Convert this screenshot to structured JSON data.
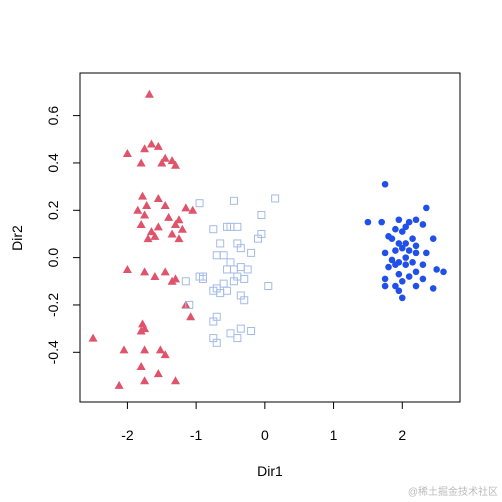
{
  "chart_data": {
    "type": "scatter",
    "xlabel": "Dir1",
    "ylabel": "Dir2",
    "xlim": [
      -2.69,
      2.84
    ],
    "ylim": [
      -0.61,
      0.78
    ],
    "xticks": [
      -2,
      -1,
      0,
      1,
      2
    ],
    "yticks": [
      -0.4,
      -0.2,
      {
        "value": 0,
        "label": "0.0"
      },
      0.2,
      0.4,
      0.6
    ],
    "watermark": "@稀土掘金技术社区",
    "series": [
      {
        "color": "#df536b",
        "marker": "triangle",
        "x": [
          -1.68,
          -2.0,
          -1.75,
          -1.65,
          -1.55,
          -1.45,
          -1.35,
          -1.5,
          -1.8,
          -1.3,
          -1.78,
          -1.55,
          -1.72,
          -1.85,
          -1.75,
          -1.45,
          -1.15,
          -1.05,
          -1.4,
          -1.25,
          -1.3,
          -1.8,
          -1.55,
          -1.65,
          -1.6,
          -1.2,
          -1.35,
          -1.7,
          -1.25,
          -2.0,
          -1.75,
          -1.6,
          -1.45,
          -1.35,
          -1.3,
          -1.15,
          -1.08,
          -1.78,
          -1.75,
          -1.8,
          -2.5,
          -2.05,
          -1.75,
          -1.52,
          -1.45,
          -1.8,
          -2.12,
          -1.75,
          -1.3,
          -1.55
        ],
        "values": [
          0.69,
          0.44,
          0.46,
          0.48,
          0.47,
          0.42,
          0.41,
          0.4,
          0.4,
          0.39,
          0.26,
          0.25,
          0.22,
          0.2,
          0.18,
          0.22,
          0.21,
          0.2,
          0.17,
          0.16,
          0.14,
          0.14,
          0.13,
          0.11,
          0.09,
          0.12,
          0.1,
          0.08,
          0.08,
          -0.05,
          -0.06,
          -0.08,
          -0.06,
          -0.1,
          -0.09,
          -0.2,
          -0.25,
          -0.28,
          -0.3,
          -0.31,
          -0.34,
          -0.39,
          -0.39,
          -0.39,
          -0.41,
          -0.46,
          -0.54,
          -0.52,
          -0.52,
          -0.49
        ]
      },
      {
        "color": "#a3bbe8",
        "marker": "square",
        "x": [
          0.15,
          -0.45,
          -0.95,
          -0.05,
          -0.55,
          -0.5,
          -0.75,
          -0.4,
          -0.05,
          -0.1,
          -0.65,
          -0.4,
          -0.35,
          -0.7,
          -0.6,
          -0.2,
          -0.5,
          -0.45,
          -0.35,
          -0.55,
          -0.25,
          -0.95,
          -0.9,
          -0.4,
          -1.15,
          -0.3,
          -0.45,
          -0.6,
          0.05,
          -0.7,
          -0.65,
          -0.55,
          -0.35,
          -0.3,
          -0.75,
          -1.1,
          -0.7,
          -0.75,
          -0.35,
          -0.2,
          -0.5,
          -0.75,
          -0.4,
          -0.7,
          -0.9
        ],
        "values": [
          0.25,
          0.24,
          0.23,
          0.18,
          0.13,
          0.13,
          0.12,
          0.13,
          0.1,
          0.08,
          0.06,
          0.06,
          0.04,
          0.01,
          0.01,
          0.02,
          -0.02,
          -0.05,
          -0.04,
          -0.05,
          -0.05,
          -0.08,
          -0.09,
          -0.08,
          -0.1,
          -0.09,
          -0.1,
          -0.11,
          -0.12,
          -0.13,
          -0.15,
          -0.14,
          -0.16,
          -0.18,
          -0.14,
          -0.2,
          -0.25,
          -0.27,
          -0.3,
          -0.31,
          -0.32,
          -0.34,
          -0.34,
          -0.36,
          -0.08
        ]
      },
      {
        "color": "#2150e8",
        "marker": "circle",
        "x": [
          1.75,
          2.35,
          2.2,
          1.95,
          2.1,
          1.7,
          1.5,
          2.3,
          2.05,
          1.9,
          2.0,
          1.8,
          1.85,
          2.15,
          2.05,
          2.45,
          1.95,
          2.2,
          2.0,
          1.9,
          2.1,
          1.75,
          2.2,
          2.35,
          2.05,
          1.85,
          1.95,
          2.15,
          2.3,
          1.9,
          2.05,
          1.8,
          2.5,
          2.6,
          2.2,
          1.95,
          2.1,
          2.0,
          1.75,
          2.3,
          1.75,
          1.9,
          2.2,
          2.45,
          1.95,
          2.0
        ],
        "values": [
          0.31,
          0.21,
          0.16,
          0.16,
          0.15,
          0.15,
          0.15,
          0.14,
          0.13,
          0.12,
          0.11,
          0.09,
          0.08,
          0.08,
          0.06,
          0.08,
          0.06,
          0.05,
          0.04,
          0.03,
          0.03,
          0.02,
          0.02,
          0.02,
          0.0,
          -0.01,
          -0.02,
          -0.02,
          -0.03,
          -0.03,
          -0.03,
          -0.04,
          -0.05,
          -0.06,
          -0.06,
          -0.07,
          -0.08,
          -0.1,
          -0.09,
          -0.09,
          -0.12,
          -0.12,
          -0.12,
          -0.13,
          -0.14,
          -0.17
        ]
      }
    ]
  }
}
